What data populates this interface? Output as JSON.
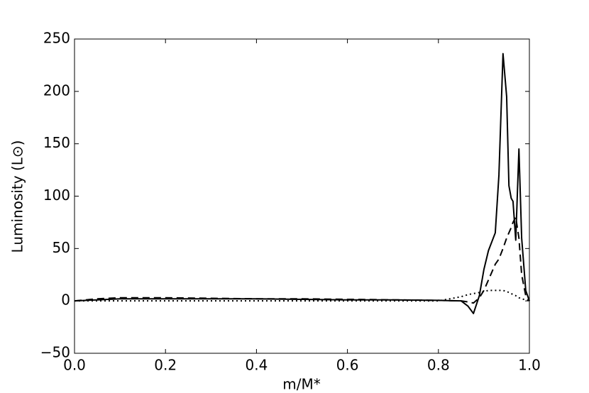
{
  "chart_data": {
    "type": "line",
    "xlabel": "m/M*",
    "ylabel": "Luminosity (L⊙)",
    "x": [
      0,
      0.05,
      0.1,
      0.2,
      0.3,
      0.4,
      0.5,
      0.6,
      0.7,
      0.8,
      0.85,
      0.865,
      0.877,
      0.89,
      0.9,
      0.91,
      0.925,
      0.933,
      0.942,
      0.95,
      0.955,
      0.96,
      0.964,
      0.97,
      0.977,
      0.983,
      0.992,
      1.0
    ],
    "series": [
      {
        "color": "#000000",
        "dash": "solid",
        "values": [
          0,
          1,
          2,
          2,
          2,
          2,
          1.5,
          1,
          1,
          0.5,
          0,
          -5,
          -12,
          5,
          30,
          48,
          65,
          120,
          236,
          195,
          110,
          98,
          95,
          58,
          145,
          60,
          10,
          0
        ]
      },
      {
        "color": "#000000",
        "dash": "dashed",
        "values": [
          0,
          2,
          3,
          3,
          2.5,
          2,
          2,
          1.5,
          1,
          0.5,
          0,
          -1,
          -2,
          3,
          10,
          20,
          35,
          40,
          50,
          60,
          65,
          70,
          75,
          80,
          60,
          25,
          5,
          0
        ]
      },
      {
        "color": "#000000",
        "dash": "dotted",
        "values": [
          0,
          0,
          0,
          0,
          0,
          0,
          0,
          0,
          0,
          0,
          4,
          6,
          7,
          8,
          9,
          10,
          10,
          10,
          10,
          9,
          8,
          7,
          6,
          5,
          3,
          2,
          1,
          0
        ]
      }
    ],
    "xlim": [
      0,
      1.0
    ],
    "xticks": [
      {
        "value": 0,
        "label": "0.0"
      },
      {
        "value": 0.2,
        "label": "0.2"
      },
      {
        "value": 0.4,
        "label": "0.4"
      },
      {
        "value": 0.6,
        "label": "0.6"
      },
      {
        "value": 0.8,
        "label": "0.8"
      },
      {
        "value": 1.0,
        "label": "1.0"
      }
    ],
    "ylim": [
      -50,
      250
    ],
    "yticks": [
      {
        "value": -50,
        "label": "−50"
      },
      0,
      50,
      100,
      150,
      200,
      250
    ],
    "grid": false
  }
}
